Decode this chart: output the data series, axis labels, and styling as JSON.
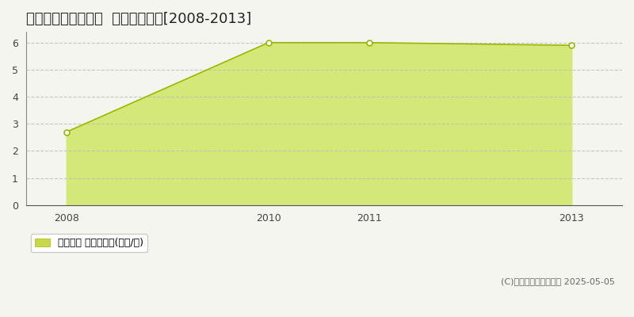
{
  "title": "東田川郡三川町神花  土地価格推移[2008-2013]",
  "years": [
    2008,
    2010,
    2011,
    2013
  ],
  "values": [
    2.7,
    6.0,
    6.0,
    5.9
  ],
  "line_color": "#9ab800",
  "fill_color": "#d4e87a",
  "fill_alpha": 1.0,
  "marker_color": "#9ab800",
  "marker_face": "white",
  "marker_size": 5,
  "marker_linewidth": 1.2,
  "ylim": [
    0,
    6.4
  ],
  "yticks": [
    0,
    1,
    2,
    3,
    4,
    5,
    6
  ],
  "xlim": [
    2007.6,
    2013.5
  ],
  "xticks": [
    2008,
    2010,
    2011,
    2013
  ],
  "grid_color": "#bbbbbb",
  "grid_linestyle": "--",
  "grid_alpha": 0.8,
  "bg_color": "#f5f5f0",
  "plot_bg": "#f5f5f0",
  "legend_label": "土地価格 平均坪単価(万円/坪)",
  "legend_color": "#c8d84a",
  "copyright": "(C)土地価格ドットコム 2025-05-05",
  "title_fontsize": 13,
  "axis_fontsize": 9,
  "legend_fontsize": 9,
  "copyright_fontsize": 8,
  "left_spine_color": "#888888",
  "bottom_spine_color": "#555555"
}
